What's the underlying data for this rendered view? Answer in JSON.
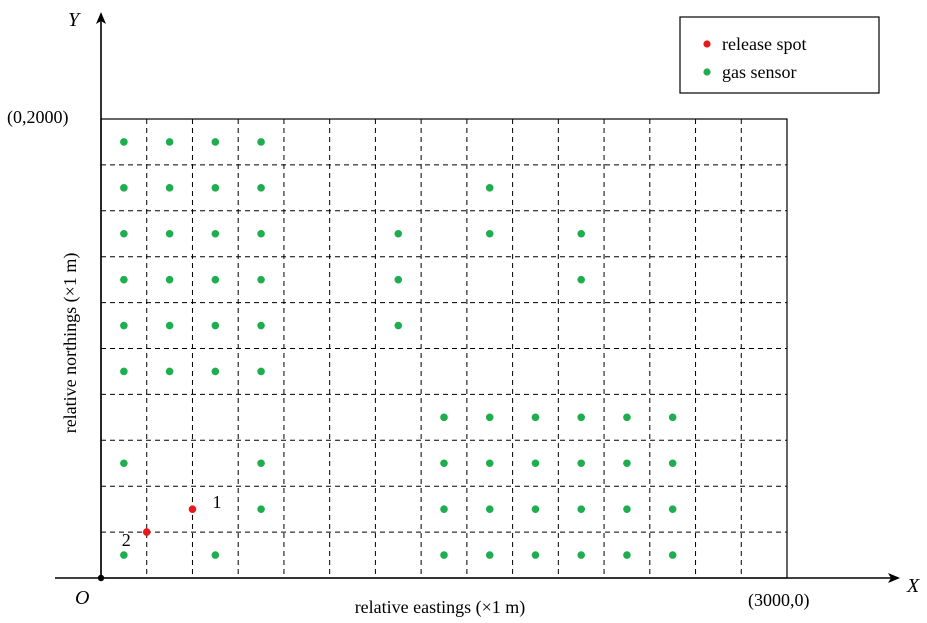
{
  "chart_data": {
    "type": "scatter",
    "x_axis_letter": "X",
    "y_axis_letter": "Y",
    "origin_label": "O",
    "xlabel": "relative eastings (×1 m)",
    "ylabel": "relative northings (×1 m)",
    "xlim": [
      0,
      3000
    ],
    "ylim": [
      0,
      2000
    ],
    "corner_labels": {
      "top_left": "(0,2000)",
      "bottom_right": "(3000,0)"
    },
    "grid": "dashed, 15 columns x 10 rows",
    "legend_position": "top-right",
    "colors": {
      "release": "#e8191c",
      "sensor": "#1fae4f",
      "grid": "#000000"
    },
    "legend": [
      {
        "label": "release spot",
        "color": "#e8191c"
      },
      {
        "label": "gas sensor",
        "color": "#1fae4f"
      }
    ],
    "series": [
      {
        "name": "release spot",
        "points": [
          {
            "x": 400,
            "y": 300,
            "label": "1"
          },
          {
            "x": 200,
            "y": 200,
            "label": "2"
          }
        ]
      },
      {
        "name": "gas sensor",
        "points": [
          {
            "x": 100,
            "y": 1900
          },
          {
            "x": 300,
            "y": 1900
          },
          {
            "x": 500,
            "y": 1900
          },
          {
            "x": 700,
            "y": 1900
          },
          {
            "x": 100,
            "y": 1700
          },
          {
            "x": 300,
            "y": 1700
          },
          {
            "x": 500,
            "y": 1700
          },
          {
            "x": 700,
            "y": 1700
          },
          {
            "x": 1700,
            "y": 1700
          },
          {
            "x": 100,
            "y": 1500
          },
          {
            "x": 300,
            "y": 1500
          },
          {
            "x": 500,
            "y": 1500
          },
          {
            "x": 700,
            "y": 1500
          },
          {
            "x": 1300,
            "y": 1500
          },
          {
            "x": 1700,
            "y": 1500
          },
          {
            "x": 2100,
            "y": 1500
          },
          {
            "x": 100,
            "y": 1300
          },
          {
            "x": 300,
            "y": 1300
          },
          {
            "x": 500,
            "y": 1300
          },
          {
            "x": 700,
            "y": 1300
          },
          {
            "x": 1300,
            "y": 1300
          },
          {
            "x": 2100,
            "y": 1300
          },
          {
            "x": 100,
            "y": 1100
          },
          {
            "x": 300,
            "y": 1100
          },
          {
            "x": 500,
            "y": 1100
          },
          {
            "x": 700,
            "y": 1100
          },
          {
            "x": 1300,
            "y": 1100
          },
          {
            "x": 100,
            "y": 900
          },
          {
            "x": 300,
            "y": 900
          },
          {
            "x": 500,
            "y": 900
          },
          {
            "x": 700,
            "y": 900
          },
          {
            "x": 1500,
            "y": 700
          },
          {
            "x": 1700,
            "y": 700
          },
          {
            "x": 1900,
            "y": 700
          },
          {
            "x": 2100,
            "y": 700
          },
          {
            "x": 2300,
            "y": 700
          },
          {
            "x": 2500,
            "y": 700
          },
          {
            "x": 100,
            "y": 500
          },
          {
            "x": 700,
            "y": 500
          },
          {
            "x": 1500,
            "y": 500
          },
          {
            "x": 1700,
            "y": 500
          },
          {
            "x": 1900,
            "y": 500
          },
          {
            "x": 2100,
            "y": 500
          },
          {
            "x": 2300,
            "y": 500
          },
          {
            "x": 2500,
            "y": 500
          },
          {
            "x": 700,
            "y": 300
          },
          {
            "x": 1500,
            "y": 300
          },
          {
            "x": 1700,
            "y": 300
          },
          {
            "x": 1900,
            "y": 300
          },
          {
            "x": 2100,
            "y": 300
          },
          {
            "x": 2300,
            "y": 300
          },
          {
            "x": 2500,
            "y": 300
          },
          {
            "x": 100,
            "y": 100
          },
          {
            "x": 500,
            "y": 100
          },
          {
            "x": 1500,
            "y": 100
          },
          {
            "x": 1700,
            "y": 100
          },
          {
            "x": 1900,
            "y": 100
          },
          {
            "x": 2100,
            "y": 100
          },
          {
            "x": 2300,
            "y": 100
          },
          {
            "x": 2500,
            "y": 100
          }
        ]
      }
    ]
  }
}
